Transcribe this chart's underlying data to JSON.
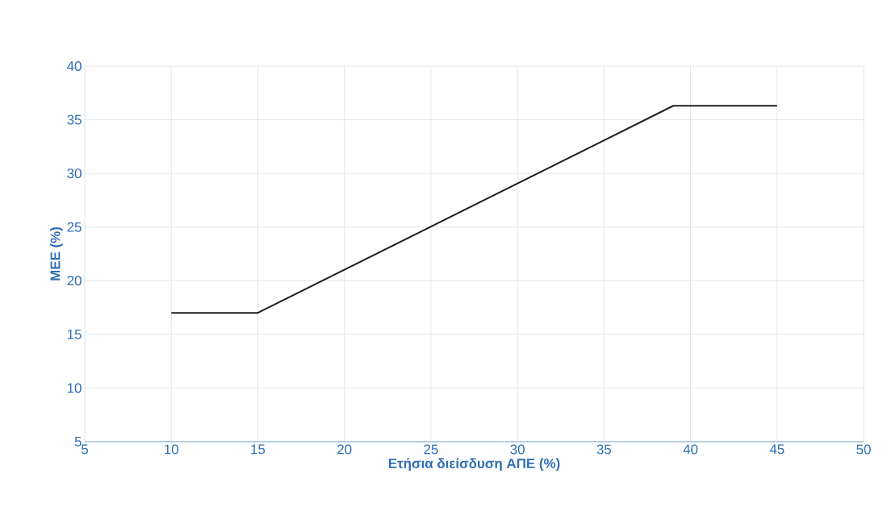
{
  "chart_data": {
    "type": "line",
    "xlabel": "Ετήσια διείσδυση ΑΠΕ (%)",
    "ylabel": "ΜΕΕ (%)",
    "x": [
      10,
      15,
      39,
      45
    ],
    "series": [
      {
        "color": "#1e1e1e",
        "values": [
          17.0,
          17.0,
          36.3,
          36.3
        ]
      }
    ],
    "xlim": [
      5,
      50
    ],
    "ylim": [
      5,
      40
    ],
    "xticks": [
      5,
      10,
      15,
      20,
      25,
      30,
      35,
      40,
      45,
      50
    ],
    "yticks": [
      5,
      10,
      15,
      20,
      25,
      30,
      35,
      40
    ],
    "grid": true,
    "marker": "none",
    "line_style": "solid"
  }
}
